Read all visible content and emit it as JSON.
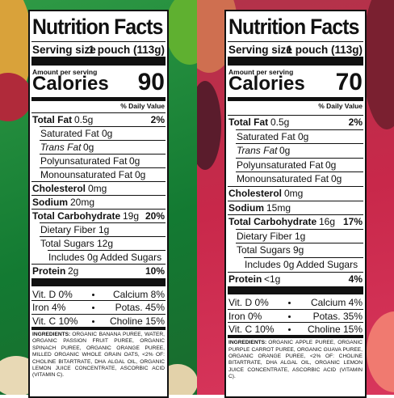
{
  "labels": [
    {
      "title": "Nutrition Facts",
      "serving_size_label": "Serving size",
      "serving_size": "1 pouch (113g)",
      "amount_per_serving": "Amount per serving",
      "calories_label": "Calories",
      "calories": "90",
      "daily_value_header": "% Daily Value",
      "nutrients": [
        {
          "name": "Total Fat",
          "amount": "0.5g",
          "dv": "2%"
        },
        {
          "name": "Saturated Fat",
          "amount": "0g"
        },
        {
          "name": "Trans Fat",
          "amount": "0g"
        },
        {
          "name": "Polyunsaturated Fat",
          "amount": "0g"
        },
        {
          "name": "Monounsaturated Fat",
          "amount": "0g"
        },
        {
          "name": "Cholesterol",
          "amount": "0mg"
        },
        {
          "name": "Sodium",
          "amount": "20mg"
        },
        {
          "name": "Total Carbohydrate",
          "amount": "19g",
          "dv": "20%"
        },
        {
          "name": "Dietary Fiber",
          "amount": "1g"
        },
        {
          "name": "Total Sugars",
          "amount": "12g"
        },
        {
          "name": "Includes 0g Added Sugars"
        },
        {
          "name": "Protein",
          "amount": "2g",
          "dv": "10%"
        }
      ],
      "vitamins": [
        [
          "Vit. D 0%",
          "Calcium 8%"
        ],
        [
          "Iron 4%",
          "Potas. 45%"
        ],
        [
          "Vit. C 10%",
          "Choline 15%"
        ]
      ],
      "ingredients_label": "INGREDIENTS:",
      "ingredients": "ORGANIC BANANA PUREE, WATER, ORGANIC PASSION FRUIT PUREE, ORGANIC SPINACH PUREE, ORGANIC ORANGE PUREE, MILLED ORGANIC WHOLE GRAIN OATS, <2% OF: CHOLINE BITARTRATE, DHA ALGAL OIL, ORGANIC LEMON JUICE CONCENTRATE, ASCORBIC ACID (VITAMIN C)."
    },
    {
      "title": "Nutrition Facts",
      "serving_size_label": "Serving size",
      "serving_size": "1 pouch (113g)",
      "amount_per_serving": "Amount per serving",
      "calories_label": "Calories",
      "calories": "70",
      "daily_value_header": "% Daily Value",
      "nutrients": [
        {
          "name": "Total Fat",
          "amount": "0.5g",
          "dv": "2%"
        },
        {
          "name": "Saturated Fat",
          "amount": "0g"
        },
        {
          "name": "Trans Fat",
          "amount": "0g"
        },
        {
          "name": "Polyunsaturated Fat",
          "amount": "0g"
        },
        {
          "name": "Monounsaturated Fat",
          "amount": "0g"
        },
        {
          "name": "Cholesterol",
          "amount": "0mg"
        },
        {
          "name": "Sodium",
          "amount": "15mg"
        },
        {
          "name": "Total Carbohydrate",
          "amount": "16g",
          "dv": "17%"
        },
        {
          "name": "Dietary Fiber",
          "amount": "1g"
        },
        {
          "name": "Total Sugars",
          "amount": "9g"
        },
        {
          "name": "Includes 0g Added Sugars"
        },
        {
          "name": "Protein",
          "amount": "<1g",
          "dv": "4%"
        }
      ],
      "vitamins": [
        [
          "Vit. D 0%",
          "Calcium 4%"
        ],
        [
          "Iron 0%",
          "Potas. 35%"
        ],
        [
          "Vit. C 10%",
          "Choline 15%"
        ]
      ],
      "ingredients_label": "INGREDIENTS:",
      "ingredients": "ORGANIC APPLE PUREE, ORGANIC PURPLE CARROT PUREE, ORGANIC GUAVA PUREE, ORGANIC ORANGE PUREE, <2% OF: CHOLINE BITARTRATE, DHA ALGAL OIL, ORGANIC LEMON JUICE CONCENTRATE, ASCORBIC ACID (VITAMIN C)."
    }
  ]
}
